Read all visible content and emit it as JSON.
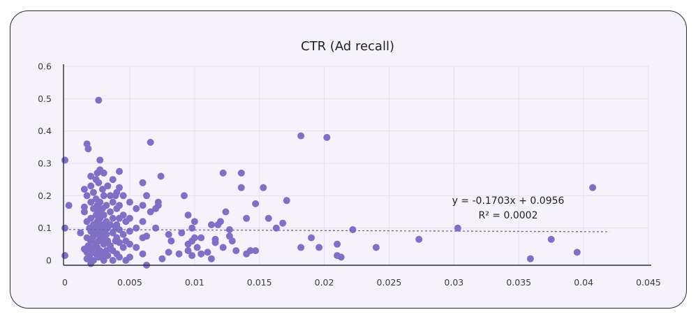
{
  "chart_data": {
    "type": "scatter",
    "title": "CTR (Ad recall)",
    "xlabel": "",
    "ylabel": "",
    "xlim": [
      0,
      0.045
    ],
    "ylim": [
      0,
      0.6
    ],
    "x_ticks": [
      "0",
      "0.005",
      "0.01",
      "0.015",
      "0.02",
      "0.025",
      "0.03",
      "0.035",
      "0.04",
      "0.045"
    ],
    "y_ticks": [
      "0",
      "0.1",
      "0.2",
      "0.3",
      "0.4",
      "0.5",
      "0.6"
    ],
    "grid": true,
    "color": "#7f70c6",
    "trendline": {
      "slope": -0.1703,
      "intercept": 0.0956,
      "x_range": [
        0,
        0.042
      ],
      "equation": "y = -0.1703x + 0.0956",
      "r_squared": "R² = 0.0002"
    },
    "points": [
      [
        0,
        0.31
      ],
      [
        0,
        0.1
      ],
      [
        0,
        0.015
      ],
      [
        0.0003,
        0.17
      ],
      [
        0.0012,
        0.085
      ],
      [
        0.0015,
        0.15
      ],
      [
        0.0015,
        0.165
      ],
      [
        0.0015,
        0.22
      ],
      [
        0.0015,
        0.035
      ],
      [
        0.0017,
        0.12
      ],
      [
        0.0017,
        0.2
      ],
      [
        0.0017,
        0.36
      ],
      [
        0.0017,
        0.07
      ],
      [
        0.0017,
        0.025
      ],
      [
        0.0017,
        0.005
      ],
      [
        0.0018,
        0.345
      ],
      [
        0.0018,
        0.045
      ],
      [
        0.0019,
        0.1
      ],
      [
        0.0019,
        0.015
      ],
      [
        0.002,
        0.26
      ],
      [
        0.002,
        0.23
      ],
      [
        0.002,
        0.18
      ],
      [
        0.002,
        0.13
      ],
      [
        0.002,
        0.09
      ],
      [
        0.002,
        0.06
      ],
      [
        0.002,
        0.03
      ],
      [
        0.002,
        -0.01
      ],
      [
        0.0022,
        0.21
      ],
      [
        0.0022,
        0.16
      ],
      [
        0.0022,
        0.11
      ],
      [
        0.0022,
        0.075
      ],
      [
        0.0022,
        0.04
      ],
      [
        0.0022,
        0.0
      ],
      [
        0.0024,
        0.25
      ],
      [
        0.0024,
        0.19
      ],
      [
        0.0024,
        0.14
      ],
      [
        0.0024,
        0.095
      ],
      [
        0.0024,
        0.055
      ],
      [
        0.0024,
        0.02
      ],
      [
        0.0025,
        0.27
      ],
      [
        0.0025,
        0.17
      ],
      [
        0.0025,
        0.12
      ],
      [
        0.0025,
        0.085
      ],
      [
        0.0025,
        0.04
      ],
      [
        0.0026,
        0.495
      ],
      [
        0.0026,
        0.24
      ],
      [
        0.0026,
        0.15
      ],
      [
        0.0026,
        0.1
      ],
      [
        0.0026,
        0.06
      ],
      [
        0.0026,
        0.01
      ],
      [
        0.0027,
        0.28
      ],
      [
        0.0027,
        0.31
      ],
      [
        0.0027,
        0.18
      ],
      [
        0.0027,
        0.13
      ],
      [
        0.0027,
        0.075
      ],
      [
        0.0027,
        0.03
      ],
      [
        0.0029,
        0.22
      ],
      [
        0.0029,
        0.16
      ],
      [
        0.0029,
        0.11
      ],
      [
        0.0029,
        0.07
      ],
      [
        0.0029,
        0.02
      ],
      [
        0.003,
        0.27
      ],
      [
        0.003,
        0.2
      ],
      [
        0.003,
        0.14
      ],
      [
        0.003,
        0.09
      ],
      [
        0.003,
        0.05
      ],
      [
        0.003,
        0.0
      ],
      [
        0.0032,
        0.17
      ],
      [
        0.0032,
        0.12
      ],
      [
        0.0032,
        0.08
      ],
      [
        0.0032,
        0.03
      ],
      [
        0.0033,
        0.23
      ],
      [
        0.0033,
        0.1
      ],
      [
        0.0033,
        0.06
      ],
      [
        0.0033,
        0.015
      ],
      [
        0.0035,
        0.2
      ],
      [
        0.0035,
        0.15
      ],
      [
        0.0035,
        0.11
      ],
      [
        0.0035,
        0.045
      ],
      [
        0.0037,
        0.25
      ],
      [
        0.0037,
        0.18
      ],
      [
        0.0037,
        0.13
      ],
      [
        0.0037,
        0.085
      ],
      [
        0.0037,
        0.03
      ],
      [
        0.0037,
        0.0
      ],
      [
        0.0039,
        0.2
      ],
      [
        0.0039,
        0.1
      ],
      [
        0.0039,
        0.06
      ],
      [
        0.004,
        0.21
      ],
      [
        0.004,
        0.16
      ],
      [
        0.004,
        0.11
      ],
      [
        0.004,
        0.07
      ],
      [
        0.004,
        0.02
      ],
      [
        0.0042,
        0.275
      ],
      [
        0.0042,
        0.225
      ],
      [
        0.0042,
        0.17
      ],
      [
        0.0042,
        0.13
      ],
      [
        0.0042,
        0.095
      ],
      [
        0.0042,
        0.055
      ],
      [
        0.0042,
        0.01
      ],
      [
        0.0045,
        0.2
      ],
      [
        0.0045,
        0.14
      ],
      [
        0.0045,
        0.08
      ],
      [
        0.0045,
        0.04
      ],
      [
        0.0047,
        0.12
      ],
      [
        0.0047,
        0.06
      ],
      [
        0.0047,
        0.0
      ],
      [
        0.005,
        0.18
      ],
      [
        0.005,
        0.13
      ],
      [
        0.005,
        0.09
      ],
      [
        0.005,
        0.05
      ],
      [
        0.005,
        0.01
      ],
      [
        0.0055,
        0.16
      ],
      [
        0.0055,
        0.1
      ],
      [
        0.0055,
        0.04
      ],
      [
        0.006,
        0.24
      ],
      [
        0.006,
        0.17
      ],
      [
        0.006,
        0.12
      ],
      [
        0.006,
        0.07
      ],
      [
        0.006,
        0.02
      ],
      [
        0.0063,
        0.2
      ],
      [
        0.0063,
        0.075
      ],
      [
        0.0063,
        -0.015
      ],
      [
        0.0066,
        0.365
      ],
      [
        0.0066,
        0.15
      ],
      [
        0.007,
        0.16
      ],
      [
        0.007,
        0.1
      ],
      [
        0.0072,
        0.18
      ],
      [
        0.0072,
        0.17
      ],
      [
        0.0074,
        0.26
      ],
      [
        0.0075,
        0.005
      ],
      [
        0.008,
        0.08
      ],
      [
        0.008,
        0.025
      ],
      [
        0.0082,
        0.06
      ],
      [
        0.0088,
        0.02
      ],
      [
        0.009,
        0.085
      ],
      [
        0.0092,
        0.2
      ],
      [
        0.0095,
        0.14
      ],
      [
        0.0095,
        0.05
      ],
      [
        0.0095,
        0.03
      ],
      [
        0.0098,
        0.1
      ],
      [
        0.0098,
        0.06
      ],
      [
        0.0098,
        0.015
      ],
      [
        0.01,
        0.12
      ],
      [
        0.01,
        0.07
      ],
      [
        0.0102,
        0.04
      ],
      [
        0.0105,
        0.07
      ],
      [
        0.0105,
        0.02
      ],
      [
        0.011,
        0.025
      ],
      [
        0.0113,
        0.11
      ],
      [
        0.0113,
        0.005
      ],
      [
        0.0116,
        0.065
      ],
      [
        0.0116,
        0.055
      ],
      [
        0.0118,
        0.11
      ],
      [
        0.012,
        0.12
      ],
      [
        0.0122,
        0.27
      ],
      [
        0.0122,
        0.04
      ],
      [
        0.0124,
        0.15
      ],
      [
        0.0127,
        0.095
      ],
      [
        0.0127,
        0.075
      ],
      [
        0.0129,
        0.06
      ],
      [
        0.0132,
        0.03
      ],
      [
        0.0136,
        0.27
      ],
      [
        0.0136,
        0.225
      ],
      [
        0.014,
        0.13
      ],
      [
        0.014,
        0.02
      ],
      [
        0.0143,
        0.03
      ],
      [
        0.0147,
        0.175
      ],
      [
        0.0147,
        0.03
      ],
      [
        0.0153,
        0.225
      ],
      [
        0.0157,
        0.13
      ],
      [
        0.0163,
        0.1
      ],
      [
        0.0168,
        0.115
      ],
      [
        0.0171,
        0.185
      ],
      [
        0.0182,
        0.385
      ],
      [
        0.0182,
        0.04
      ],
      [
        0.019,
        0.07
      ],
      [
        0.0196,
        0.04
      ],
      [
        0.0202,
        0.38
      ],
      [
        0.021,
        0.05
      ],
      [
        0.021,
        0.015
      ],
      [
        0.0213,
        0.01
      ],
      [
        0.0222,
        0.095
      ],
      [
        0.024,
        0.04
      ],
      [
        0.0273,
        0.065
      ],
      [
        0.0303,
        0.1
      ],
      [
        0.0359,
        0.005
      ],
      [
        0.0375,
        0.065
      ],
      [
        0.0395,
        0.025
      ],
      [
        0.0407,
        0.225
      ]
    ]
  }
}
